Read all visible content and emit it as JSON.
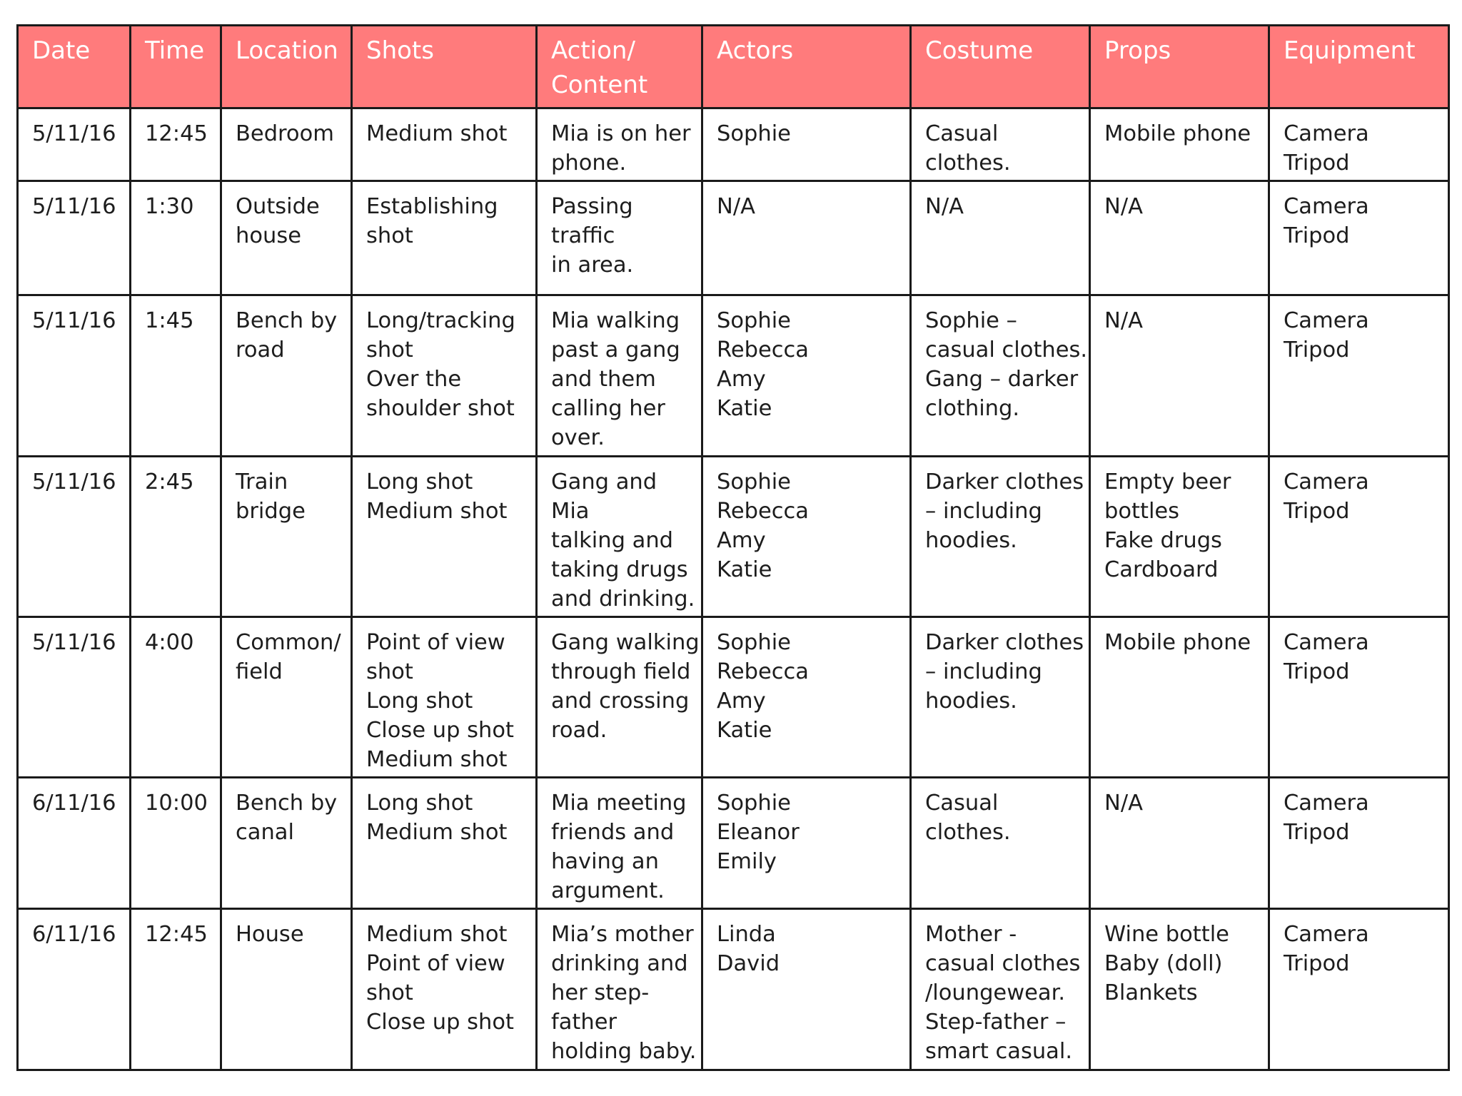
{
  "columns": [
    "Date",
    "Time",
    "Location",
    "Shots",
    "Action/\nContent",
    "Actors",
    "Costume",
    "Props",
    "Equipment"
  ],
  "colors": {
    "header_background": "#ff7b7c",
    "header_text": "#ffffff",
    "border": "#1a1a1a",
    "body_text": "#1d1d1d"
  },
  "rows": [
    [
      "5/11/16",
      "12:45",
      "Bedroom",
      "Medium shot",
      "Mia is on her\nphone.",
      "Sophie",
      "Casual clothes.",
      "Mobile phone",
      "Camera\nTripod"
    ],
    [
      "5/11/16",
      "1:30",
      "Outside\nhouse",
      "Establishing\nshot",
      "Passing traffic\nin area.",
      "N/A",
      "N/A",
      "N/A",
      "Camera\nTripod"
    ],
    [
      "5/11/16",
      "1:45",
      "Bench by\nroad",
      "Long/tracking\nshot\nOver the\nshoulder shot",
      "Mia walking\npast a gang\nand them\ncalling her\nover.",
      "Sophie\nRebecca\nAmy\nKatie",
      "Sophie –\ncasual clothes.\nGang – darker\nclothing.",
      "N/A",
      "Camera\nTripod"
    ],
    [
      "5/11/16",
      "2:45",
      "Train\nbridge",
      "Long shot\nMedium shot",
      "Gang and Mia\ntalking and\ntaking drugs\nand drinking.",
      "Sophie\nRebecca\nAmy\nKatie",
      "Darker clothes\n– including\nhoodies.",
      "Empty beer\nbottles\nFake drugs\nCardboard",
      "Camera\nTripod"
    ],
    [
      "5/11/16",
      "4:00",
      "Common/\nfield",
      "Point of view\nshot\nLong shot\nClose up shot\nMedium shot",
      "Gang walking\nthrough field\nand crossing\nroad.",
      "Sophie\nRebecca\nAmy\nKatie",
      "Darker clothes\n– including\nhoodies.",
      "Mobile phone",
      "Camera\nTripod"
    ],
    [
      "6/11/16",
      "10:00",
      "Bench by\ncanal",
      "Long shot\nMedium shot",
      "Mia meeting\nfriends and\nhaving an\nargument.",
      "Sophie\nEleanor\nEmily",
      "Casual clothes.",
      "N/A",
      "Camera\nTripod"
    ],
    [
      "6/11/16",
      "12:45",
      "House",
      "Medium shot\nPoint of view\nshot\nClose up shot",
      "Mia’s mother\ndrinking and\nher step-\nfather\nholding baby.",
      "Linda\nDavid",
      "Mother -\ncasual clothes\n/loungewear.\nStep-father –\nsmart casual.",
      "Wine bottle\nBaby (doll)\nBlankets",
      "Camera\nTripod"
    ]
  ]
}
